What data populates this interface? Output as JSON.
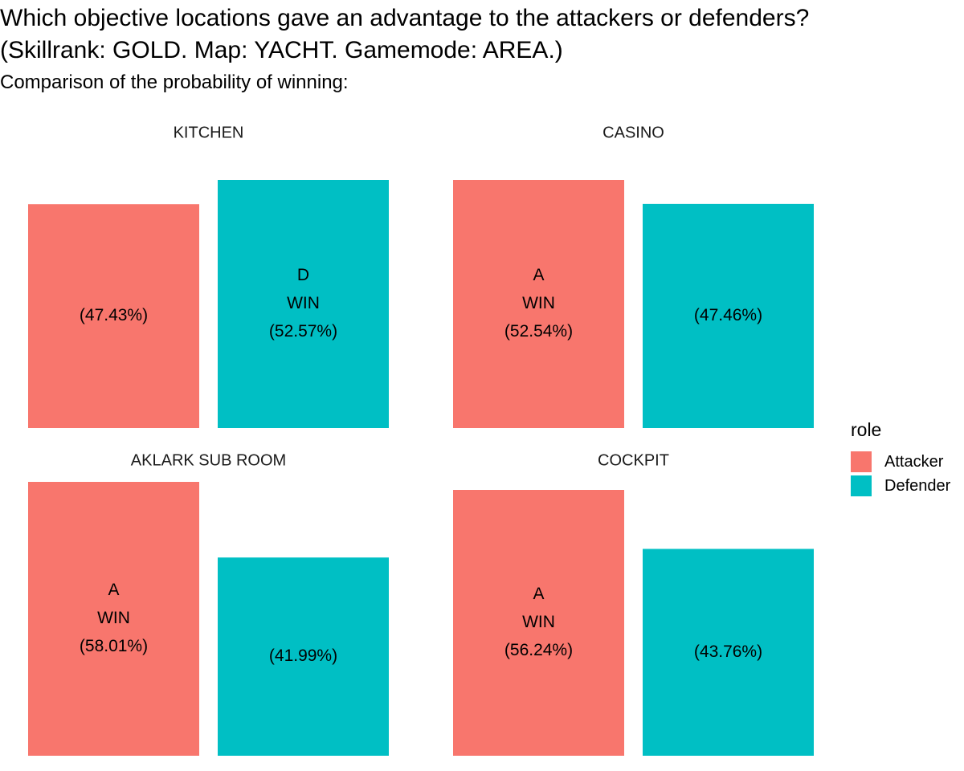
{
  "title_lines": [
    "Which objective locations gave an advantage to the attackers or defenders?",
    "(Skillrank: GOLD. Map: YACHT. Gamemode: AREA.)"
  ],
  "subtitle": "Comparison of the probability of winning:",
  "legend": {
    "title": "role",
    "items": [
      {
        "label": "Attacker",
        "color": "#F8766D"
      },
      {
        "label": "Defender",
        "color": "#00BFC4"
      }
    ]
  },
  "chart_data": {
    "type": "bar",
    "facets": [
      {
        "name": "KITCHEN",
        "bars": [
          {
            "role": "Attacker",
            "value": 47.43,
            "label_lines": [
              "(47.43%)"
            ]
          },
          {
            "role": "Defender",
            "value": 52.57,
            "label_lines": [
              "D",
              "WIN",
              "(52.57%)"
            ]
          }
        ]
      },
      {
        "name": "CASINO",
        "bars": [
          {
            "role": "Attacker",
            "value": 52.54,
            "label_lines": [
              "A",
              "WIN",
              "(52.54%)"
            ]
          },
          {
            "role": "Defender",
            "value": 47.46,
            "label_lines": [
              "(47.46%)"
            ]
          }
        ]
      },
      {
        "name": "AKLARK SUB ROOM",
        "bars": [
          {
            "role": "Attacker",
            "value": 58.01,
            "label_lines": [
              "A",
              "WIN",
              "(58.01%)"
            ]
          },
          {
            "role": "Defender",
            "value": 41.99,
            "label_lines": [
              "(41.99%)"
            ]
          }
        ]
      },
      {
        "name": "COCKPIT",
        "bars": [
          {
            "role": "Attacker",
            "value": 56.24,
            "label_lines": [
              "A",
              "WIN",
              "(56.24%)"
            ]
          },
          {
            "role": "Defender",
            "value": 43.76,
            "label_lines": [
              "(43.76%)"
            ]
          }
        ]
      }
    ],
    "colors": {
      "Attacker": "#F8766D",
      "Defender": "#00BFC4"
    },
    "y_scale": "free",
    "grid": false,
    "legend_position": "right"
  }
}
